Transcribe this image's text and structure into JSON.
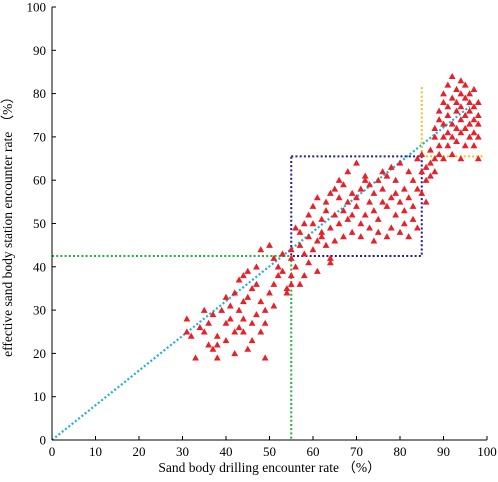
{
  "chart_data": {
    "type": "scatter",
    "title": "",
    "xlabel": "Sand body drilling encounter rate （%）",
    "ylabel": "effective sand body station encounter rate （%）",
    "xlim": [
      0,
      100
    ],
    "ylim": [
      0,
      100
    ],
    "xticks": [
      0,
      10,
      20,
      30,
      40,
      50,
      60,
      70,
      80,
      90,
      100
    ],
    "yticks": [
      0,
      10,
      20,
      30,
      40,
      50,
      60,
      70,
      80,
      90,
      100
    ],
    "grid": false,
    "marker": "triangle",
    "colors": {
      "points": "#e8202a",
      "trend": "#1fb0d8",
      "green_guide": "#1fb43c",
      "blue_box": "#1c1caa",
      "yellow_guide": "#f0c020",
      "axis": "#000000"
    },
    "guides": {
      "trend_line": {
        "x": [
          0,
          96
        ],
        "y": [
          0,
          77
        ]
      },
      "green_cutoff": {
        "x": 55,
        "y": 42.5
      },
      "blue_box": {
        "x": [
          55,
          85
        ],
        "y": [
          42.5,
          65.5
        ]
      },
      "yellow_cutoff": {
        "x": 85,
        "y": 65.5,
        "x_end": 99,
        "y_end": 82
      }
    },
    "series": [
      {
        "points": [
          [
            31,
            28
          ],
          [
            31,
            25
          ],
          [
            32,
            24
          ],
          [
            33,
            19
          ],
          [
            34,
            26
          ],
          [
            35,
            25
          ],
          [
            35,
            30
          ],
          [
            36,
            22
          ],
          [
            36,
            27
          ],
          [
            37,
            21
          ],
          [
            37,
            29
          ],
          [
            38,
            19
          ],
          [
            38,
            24
          ],
          [
            38,
            22
          ],
          [
            39,
            30
          ],
          [
            40,
            33
          ],
          [
            40,
            27
          ],
          [
            40,
            23
          ],
          [
            41,
            31
          ],
          [
            41,
            28
          ],
          [
            42,
            25
          ],
          [
            42,
            20
          ],
          [
            42,
            34
          ],
          [
            43,
            26
          ],
          [
            43,
            30
          ],
          [
            43,
            37
          ],
          [
            44,
            25
          ],
          [
            44,
            32
          ],
          [
            44,
            28
          ],
          [
            44,
            38
          ],
          [
            45,
            21
          ],
          [
            45,
            33
          ],
          [
            45,
            39
          ],
          [
            46,
            27
          ],
          [
            46,
            35
          ],
          [
            46,
            23
          ],
          [
            47,
            36
          ],
          [
            47,
            29
          ],
          [
            47,
            40
          ],
          [
            48,
            32
          ],
          [
            48,
            25
          ],
          [
            48,
            44
          ],
          [
            49,
            30
          ],
          [
            49,
            19
          ],
          [
            49,
            27
          ],
          [
            50,
            34
          ],
          [
            50,
            45
          ],
          [
            51,
            42
          ],
          [
            51,
            36
          ],
          [
            51,
            31
          ],
          [
            52,
            40
          ],
          [
            52,
            38
          ],
          [
            53,
            43
          ],
          [
            53,
            39
          ],
          [
            54,
            34
          ],
          [
            54,
            35
          ],
          [
            55,
            38
          ],
          [
            55,
            36
          ],
          [
            55,
            44
          ],
          [
            55,
            42
          ],
          [
            56,
            49
          ],
          [
            56,
            40
          ],
          [
            57,
            48
          ],
          [
            57,
            45
          ],
          [
            57,
            36
          ],
          [
            58,
            43
          ],
          [
            58,
            50
          ],
          [
            58,
            38
          ],
          [
            59,
            47
          ],
          [
            59,
            52
          ],
          [
            59,
            41
          ],
          [
            60,
            54
          ],
          [
            60,
            44
          ],
          [
            60,
            50
          ],
          [
            61,
            46
          ],
          [
            61,
            39
          ],
          [
            61,
            56
          ],
          [
            62,
            51
          ],
          [
            62,
            48
          ],
          [
            62,
            47
          ],
          [
            63,
            55
          ],
          [
            63,
            45
          ],
          [
            63,
            53
          ],
          [
            64,
            49
          ],
          [
            64,
            57
          ],
          [
            64,
            42
          ],
          [
            64,
            41
          ],
          [
            65,
            58
          ],
          [
            65,
            52
          ],
          [
            65,
            46
          ],
          [
            66,
            56
          ],
          [
            66,
            60
          ],
          [
            66,
            50
          ],
          [
            67,
            53
          ],
          [
            67,
            47
          ],
          [
            67,
            59
          ],
          [
            68,
            55
          ],
          [
            68,
            62
          ],
          [
            68,
            51
          ],
          [
            69,
            52
          ],
          [
            69,
            48
          ],
          [
            69,
            57
          ],
          [
            70,
            54
          ],
          [
            70,
            64
          ],
          [
            70,
            56
          ],
          [
            71,
            50
          ],
          [
            71,
            58
          ],
          [
            71,
            47
          ],
          [
            72,
            60
          ],
          [
            72,
            52
          ],
          [
            72,
            61
          ],
          [
            73,
            49
          ],
          [
            73,
            55
          ],
          [
            73,
            59
          ],
          [
            74,
            53
          ],
          [
            74,
            57
          ],
          [
            74,
            46
          ],
          [
            75,
            60
          ],
          [
            75,
            51
          ],
          [
            75,
            48
          ],
          [
            76,
            55
          ],
          [
            76,
            62
          ],
          [
            76,
            58
          ],
          [
            77,
            47
          ],
          [
            77,
            54
          ],
          [
            77,
            61
          ],
          [
            78,
            56
          ],
          [
            78,
            49
          ],
          [
            78,
            63
          ],
          [
            79,
            52
          ],
          [
            79,
            57
          ],
          [
            79,
            60
          ],
          [
            80,
            48
          ],
          [
            80,
            55
          ],
          [
            80,
            64
          ],
          [
            81,
            50
          ],
          [
            81,
            58
          ],
          [
            81,
            53
          ],
          [
            82,
            62
          ],
          [
            82,
            47
          ],
          [
            82,
            56
          ],
          [
            83,
            60
          ],
          [
            83,
            51
          ],
          [
            83,
            54
          ],
          [
            84,
            65
          ],
          [
            84,
            58
          ],
          [
            84,
            49
          ],
          [
            85,
            62
          ],
          [
            85,
            57
          ],
          [
            85,
            66
          ],
          [
            86,
            60
          ],
          [
            86,
            63
          ],
          [
            86,
            55
          ],
          [
            87,
            67
          ],
          [
            87,
            61
          ],
          [
            87,
            64
          ],
          [
            88,
            70
          ],
          [
            88,
            65
          ],
          [
            88,
            72
          ],
          [
            88,
            62
          ],
          [
            89,
            76
          ],
          [
            89,
            68
          ],
          [
            89,
            74
          ],
          [
            89,
            66
          ],
          [
            90,
            80
          ],
          [
            90,
            73
          ],
          [
            90,
            70
          ],
          [
            90,
            78
          ],
          [
            90,
            65
          ],
          [
            91,
            82
          ],
          [
            91,
            75
          ],
          [
            91,
            71
          ],
          [
            91,
            68
          ],
          [
            91,
            77
          ],
          [
            92,
            84
          ],
          [
            92,
            79
          ],
          [
            92,
            73
          ],
          [
            92,
            70
          ],
          [
            92,
            66
          ],
          [
            93,
            81
          ],
          [
            93,
            76
          ],
          [
            93,
            72
          ],
          [
            93,
            78
          ],
          [
            93,
            69
          ],
          [
            94,
            83
          ],
          [
            94,
            80
          ],
          [
            94,
            74
          ],
          [
            94,
            71
          ],
          [
            94,
            77
          ],
          [
            94,
            65
          ],
          [
            95,
            79
          ],
          [
            95,
            75
          ],
          [
            95,
            72
          ],
          [
            95,
            68
          ],
          [
            95,
            82
          ],
          [
            96,
            78
          ],
          [
            96,
            73
          ],
          [
            96,
            70
          ],
          [
            96,
            76
          ],
          [
            96,
            80
          ],
          [
            97,
            81
          ],
          [
            97,
            74
          ],
          [
            97,
            71
          ],
          [
            97,
            77
          ],
          [
            97,
            68
          ],
          [
            98,
            78
          ],
          [
            98,
            73
          ],
          [
            98,
            75
          ],
          [
            98,
            70
          ],
          [
            98,
            65
          ]
        ]
      }
    ]
  }
}
